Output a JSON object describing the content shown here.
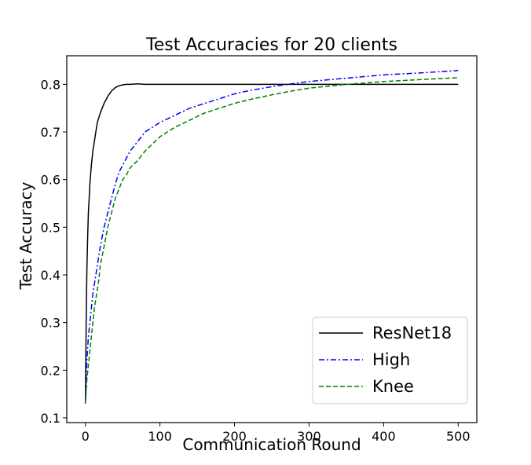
{
  "chart_data": {
    "type": "line",
    "title": "Test Accuracies for 20 clients",
    "xlabel": "Communication Round",
    "ylabel": "Test Accuracy",
    "xlim": [
      -25,
      525
    ],
    "ylim": [
      0.09,
      0.86
    ],
    "xticks": [
      0,
      100,
      200,
      300,
      400,
      500
    ],
    "yticks": [
      0.1,
      0.2,
      0.3,
      0.4,
      0.5,
      0.6,
      0.7,
      0.8
    ],
    "xtick_labels": [
      "0",
      "100",
      "200",
      "300",
      "400",
      "500"
    ],
    "ytick_labels": [
      "0.1",
      "0.2",
      "0.3",
      "0.4",
      "0.5",
      "0.6",
      "0.7",
      "0.8"
    ],
    "grid": false,
    "legend_position": "lower-right",
    "series": [
      {
        "name": "ResNet18",
        "color": "#000000",
        "style": "solid",
        "x": [
          0,
          1,
          2,
          3,
          4,
          5,
          6,
          8,
          10,
          12,
          14,
          16,
          18,
          20,
          25,
          30,
          35,
          40,
          45,
          50,
          55,
          60,
          70,
          80,
          100,
          150,
          200,
          250,
          300,
          350,
          400,
          450,
          500
        ],
        "y": [
          0.13,
          0.3,
          0.41,
          0.48,
          0.53,
          0.56,
          0.59,
          0.63,
          0.66,
          0.68,
          0.7,
          0.72,
          0.73,
          0.74,
          0.76,
          0.775,
          0.786,
          0.793,
          0.797,
          0.799,
          0.8,
          0.8,
          0.801,
          0.8,
          0.8,
          0.8,
          0.8,
          0.8,
          0.8,
          0.8,
          0.8,
          0.8,
          0.8
        ]
      },
      {
        "name": "High",
        "color": "#0000ff",
        "style": "dashdot",
        "x": [
          0,
          2,
          4,
          6,
          8,
          10,
          12,
          15,
          18,
          20,
          25,
          30,
          35,
          40,
          45,
          50,
          55,
          60,
          70,
          80,
          90,
          100,
          120,
          140,
          160,
          180,
          200,
          220,
          250,
          280,
          300,
          350,
          400,
          450,
          500
        ],
        "y": [
          0.13,
          0.22,
          0.27,
          0.3,
          0.33,
          0.36,
          0.38,
          0.41,
          0.44,
          0.46,
          0.5,
          0.53,
          0.56,
          0.59,
          0.615,
          0.63,
          0.645,
          0.66,
          0.68,
          0.7,
          0.71,
          0.72,
          0.735,
          0.75,
          0.76,
          0.77,
          0.78,
          0.787,
          0.795,
          0.802,
          0.806,
          0.813,
          0.82,
          0.824,
          0.829
        ]
      },
      {
        "name": "Knee",
        "color": "#008000",
        "style": "dashed",
        "x": [
          0,
          2,
          4,
          6,
          8,
          10,
          12,
          15,
          18,
          20,
          25,
          30,
          35,
          40,
          45,
          50,
          55,
          60,
          70,
          80,
          90,
          100,
          120,
          140,
          160,
          180,
          200,
          220,
          250,
          280,
          300,
          350,
          400,
          450,
          500
        ],
        "y": [
          0.13,
          0.18,
          0.21,
          0.24,
          0.27,
          0.3,
          0.33,
          0.36,
          0.39,
          0.42,
          0.46,
          0.5,
          0.53,
          0.56,
          0.58,
          0.6,
          0.61,
          0.625,
          0.64,
          0.66,
          0.675,
          0.69,
          0.71,
          0.725,
          0.74,
          0.75,
          0.76,
          0.768,
          0.778,
          0.787,
          0.792,
          0.8,
          0.806,
          0.81,
          0.814
        ]
      }
    ]
  }
}
